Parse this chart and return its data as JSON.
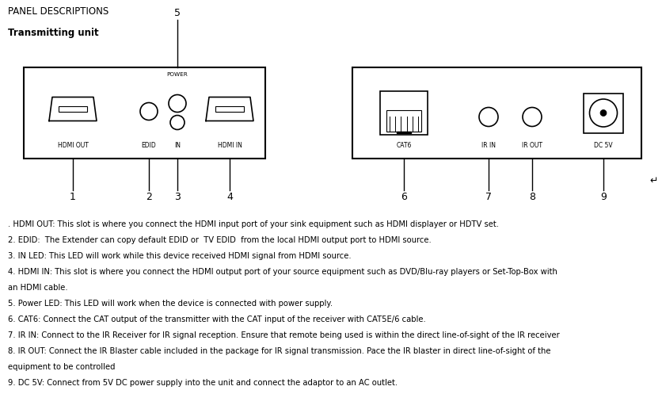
{
  "title": "PANEL DESCRIPTIONS",
  "subtitle": "Transmitting unit",
  "bg": "#ffffff",
  "fg": "#000000",
  "desc_lines": [
    ". HDMI OUT: This slot is where you connect the HDMI input port of your sink equipment such as HDMI displayer or HDTV set.",
    "2. EDID:  The Extender can copy default EDID or  TV EDID  from the local HDMI output port to HDMI source.",
    "3. IN LED: This LED will work while this device received HDMI signal from HDMI source.",
    "4. HDMI IN: This slot is where you connect the HDMI output port of your source equipment such as DVD/Blu-ray players or Set-Top-Box with",
    "an HDMI cable.",
    "5. Power LED: This LED will work when the device is connected with power supply.",
    "6. CAT6: Connect the CAT output of the transmitter with the CAT input of the receiver with CAT5E/6 cable.",
    "7. IR IN: Connect to the IR Receiver for IR signal reception. Ensure that remote being used is within the direct line-of-sight of the IR receiver",
    "8. IR OUT: Connect the IR Blaster cable included in the package for IR signal transmission. Pace the IR blaster in direct line-of-sight of the",
    "equipment to be controlled",
    "9. DC 5V: Connect from 5V DC power supply into the unit and connect the adaptor to an AC outlet."
  ],
  "fig_w": 8.36,
  "fig_h": 5.21,
  "dpi": 100
}
